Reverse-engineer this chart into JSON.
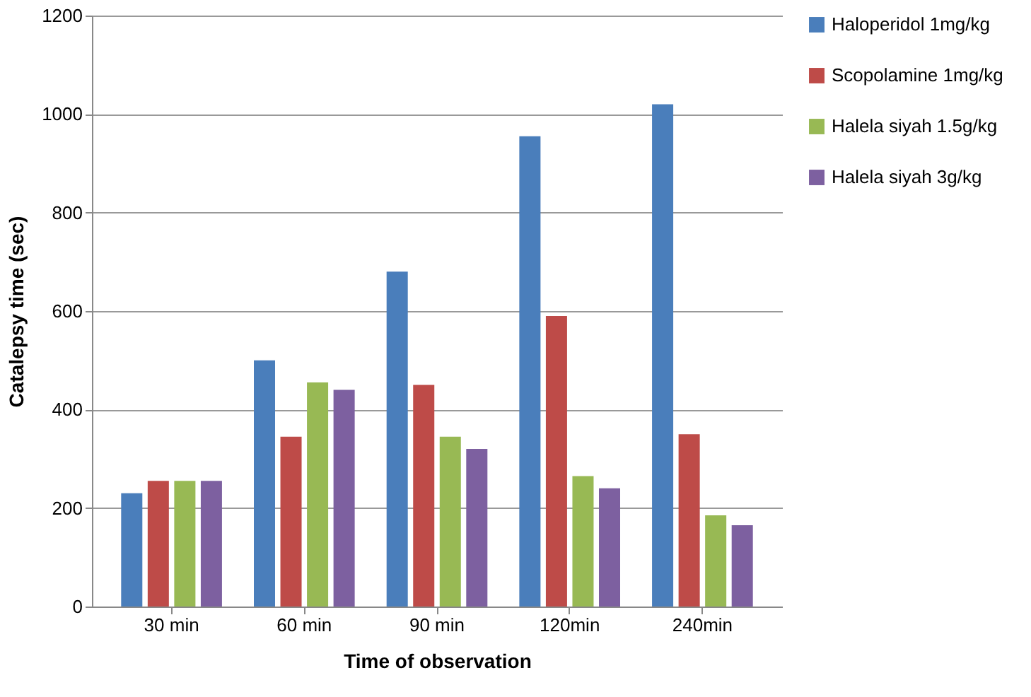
{
  "chart_data": {
    "type": "bar",
    "xlabel": "Time of observation",
    "ylabel": "Catalepsy time (sec)",
    "categories": [
      "30 min",
      "60 min",
      "90 min",
      "120min",
      "240min"
    ],
    "series": [
      {
        "name": "Haloperidol 1mg/kg",
        "color": "#4a7ebb",
        "values": [
          230,
          500,
          680,
          955,
          1020
        ]
      },
      {
        "name": "Scopolamine 1mg/kg",
        "color": "#be4b48",
        "values": [
          255,
          345,
          450,
          590,
          350
        ]
      },
      {
        "name": "Halela siyah 1.5g/kg",
        "color": "#98b954",
        "values": [
          255,
          455,
          345,
          265,
          185
        ]
      },
      {
        "name": "Halela siyah 3g/kg",
        "color": "#7d60a0",
        "values": [
          255,
          440,
          320,
          240,
          165
        ]
      }
    ],
    "ylim": [
      0,
      1200
    ],
    "yticks": [
      0,
      200,
      400,
      600,
      800,
      1000,
      1200
    ],
    "grid": "y",
    "legend": "right"
  }
}
